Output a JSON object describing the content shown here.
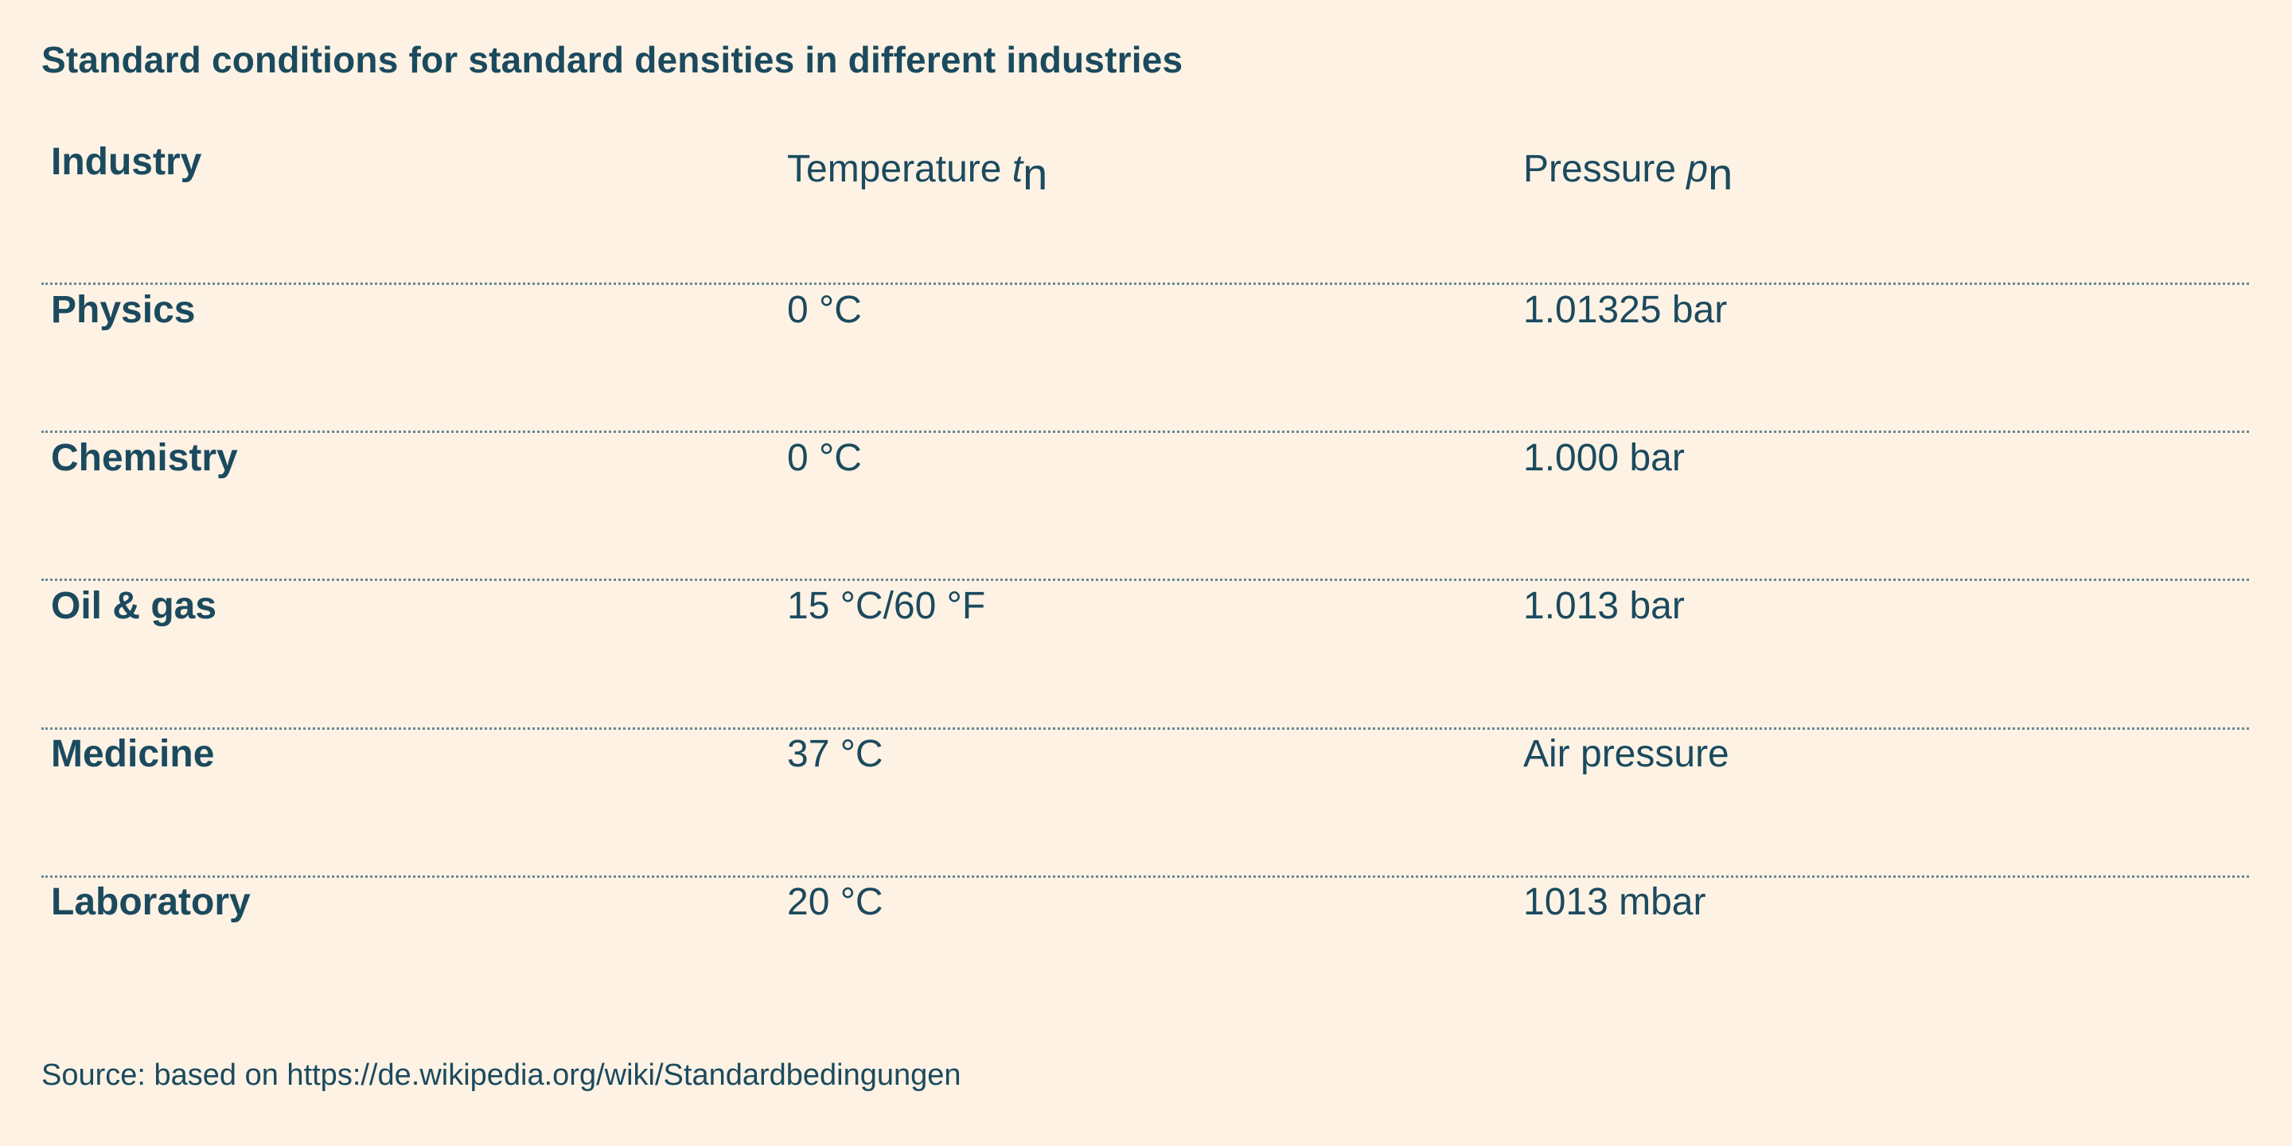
{
  "title": "Standard conditions for standard densities in different industries",
  "table": {
    "headers": {
      "industry": "Industry",
      "temperature_label": "Temperature ",
      "temperature_symbol": "t",
      "temperature_subscript": "n",
      "pressure_label": "Pressure ",
      "pressure_symbol": "p",
      "pressure_subscript": "n"
    },
    "rows": [
      {
        "industry": "Physics",
        "temperature": "0 °C",
        "pressure": "1.01325 bar"
      },
      {
        "industry": "Chemistry",
        "temperature": "0 °C",
        "pressure": "1.000 bar"
      },
      {
        "industry": "Oil & gas",
        "temperature": "15 °C/60 °F",
        "pressure": "1.013 bar"
      },
      {
        "industry": "Medicine",
        "temperature": "37 °C",
        "pressure": "Air pressure"
      },
      {
        "industry": "Laboratory",
        "temperature": "20 °C",
        "pressure": "1013 mbar"
      }
    ]
  },
  "source": "Source: based on https://de.wikipedia.org/wiki/Standardbedingungen",
  "colors": {
    "background": "#fdf2e4",
    "text": "#1b4a5e",
    "divider": "#6d8794"
  }
}
